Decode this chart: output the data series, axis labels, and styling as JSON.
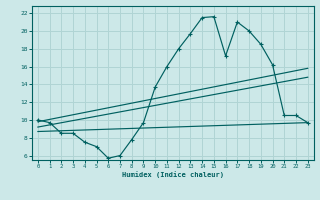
{
  "xlabel": "Humidex (Indice chaleur)",
  "ylabel": "",
  "bg_color": "#cce8e8",
  "grid_color": "#b0d4d4",
  "line_color": "#006060",
  "xlim": [
    -0.5,
    23.5
  ],
  "ylim": [
    5.5,
    22.8
  ],
  "xticks": [
    0,
    1,
    2,
    3,
    4,
    5,
    6,
    7,
    8,
    9,
    10,
    11,
    12,
    13,
    14,
    15,
    16,
    17,
    18,
    19,
    20,
    21,
    22,
    23
  ],
  "yticks": [
    6,
    8,
    10,
    12,
    14,
    16,
    18,
    20,
    22
  ],
  "zigzag_x": [
    0,
    1,
    2,
    3,
    4,
    5,
    6,
    7,
    8,
    9,
    10,
    11,
    12,
    13,
    14,
    15,
    16,
    17,
    18,
    19,
    20,
    21,
    22,
    23
  ],
  "zigzag_y": [
    10.0,
    9.7,
    8.5,
    8.5,
    7.5,
    7.0,
    5.7,
    6.0,
    7.8,
    9.7,
    13.7,
    16.0,
    18.0,
    19.7,
    21.5,
    21.6,
    17.2,
    21.0,
    20.0,
    18.5,
    16.2,
    10.5,
    10.5,
    9.7
  ],
  "line1_x": [
    0,
    23
  ],
  "line1_y": [
    9.8,
    15.8
  ],
  "line2_x": [
    0,
    23
  ],
  "line2_y": [
    9.2,
    14.8
  ],
  "line3_x": [
    0,
    23
  ],
  "line3_y": [
    8.7,
    9.7
  ]
}
